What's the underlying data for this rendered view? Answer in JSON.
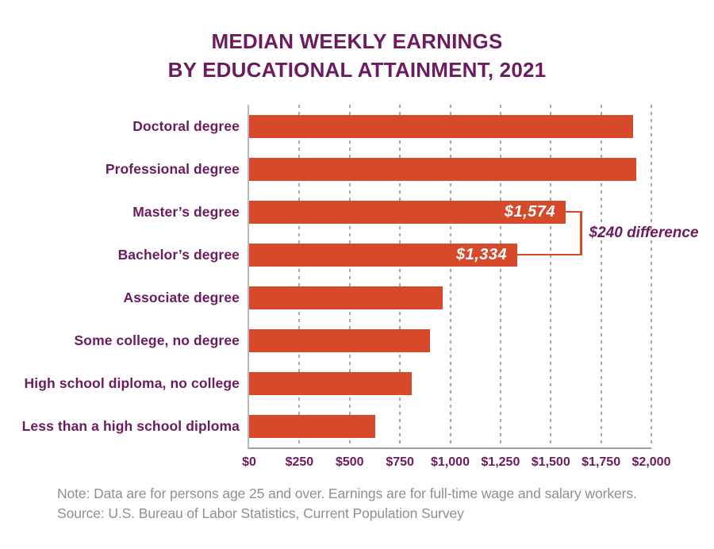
{
  "title": {
    "line1": "MEDIAN WEEKLY EARNINGS",
    "line2": "BY EDUCATIONAL ATTAINMENT, 2021"
  },
  "chart_data": {
    "type": "bar",
    "orientation": "horizontal",
    "title": "MEDIAN WEEKLY EARNINGS BY EDUCATIONAL ATTAINMENT, 2021",
    "categories": [
      "Doctoral degree",
      "Professional degree",
      "Master’s degree",
      "Bachelor’s degree",
      "Associate degree",
      "Some college, no degree",
      "High school diploma, no college",
      "Less than a high school diploma"
    ],
    "values": [
      1909,
      1924,
      1574,
      1334,
      963,
      899,
      809,
      626
    ],
    "bar_labels": [
      "",
      "",
      "$1,574",
      "$1,334",
      "",
      "",
      "",
      ""
    ],
    "xlim": [
      0,
      2000
    ],
    "x_tick_values": [
      0,
      250,
      500,
      750,
      1000,
      1250,
      1500,
      1750,
      2000
    ],
    "x_ticks": [
      "$0",
      "$250",
      "$500",
      "$750",
      "$1,000",
      "$1,250",
      "$1,500",
      "$1,750",
      "$2,000"
    ],
    "grid": "vertical-dashed",
    "legend": "none",
    "annotation": {
      "text": "$240 difference",
      "from_index": 2,
      "to_index": 3,
      "bracket_x_value": 1655
    }
  },
  "notes": {
    "note": "Note: Data are for persons age 25 and over. Earnings are for full-time wage and salary workers.",
    "source": "Source: U.S. Bureau of Labor Statistics, Current Population Survey"
  },
  "colors": {
    "bar": "#d7492b",
    "accent_purple": "#6c1b5e",
    "note_gray": "#8f8f8f",
    "grid_gray": "#a9a9a9",
    "axis_left": "#b8b8b8",
    "axis_bottom": "#9e9e9e",
    "bar_label_white": "#ffffff"
  }
}
